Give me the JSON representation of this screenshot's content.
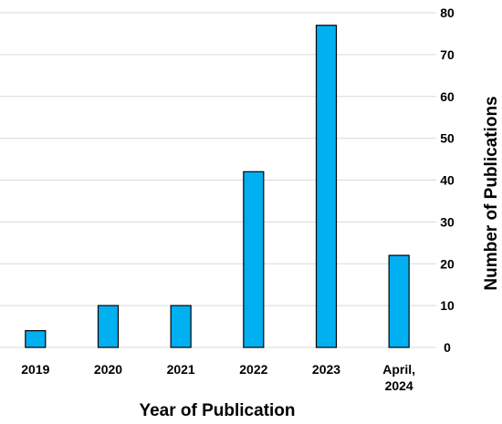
{
  "chart_data": {
    "type": "bar",
    "categories": [
      "2019",
      "2020",
      "2021",
      "2022",
      "2023",
      "April, 2024"
    ],
    "category_label_lines": [
      [
        "2019"
      ],
      [
        "2020"
      ],
      [
        "2021"
      ],
      [
        "2022"
      ],
      [
        "2023"
      ],
      [
        "April,",
        "2024"
      ]
    ],
    "values": [
      4,
      10,
      10,
      42,
      77,
      22
    ],
    "xlabel": "Year of Publication",
    "ylabel": "Number of Publications",
    "ylim": [
      0,
      80
    ],
    "yticks": [
      0,
      10,
      20,
      30,
      40,
      50,
      60,
      70,
      80
    ],
    "y_axis_side": "right",
    "grid": true,
    "legend": "none",
    "bar_color": "#00b0f0",
    "grid_color": "#d9d9d9"
  }
}
